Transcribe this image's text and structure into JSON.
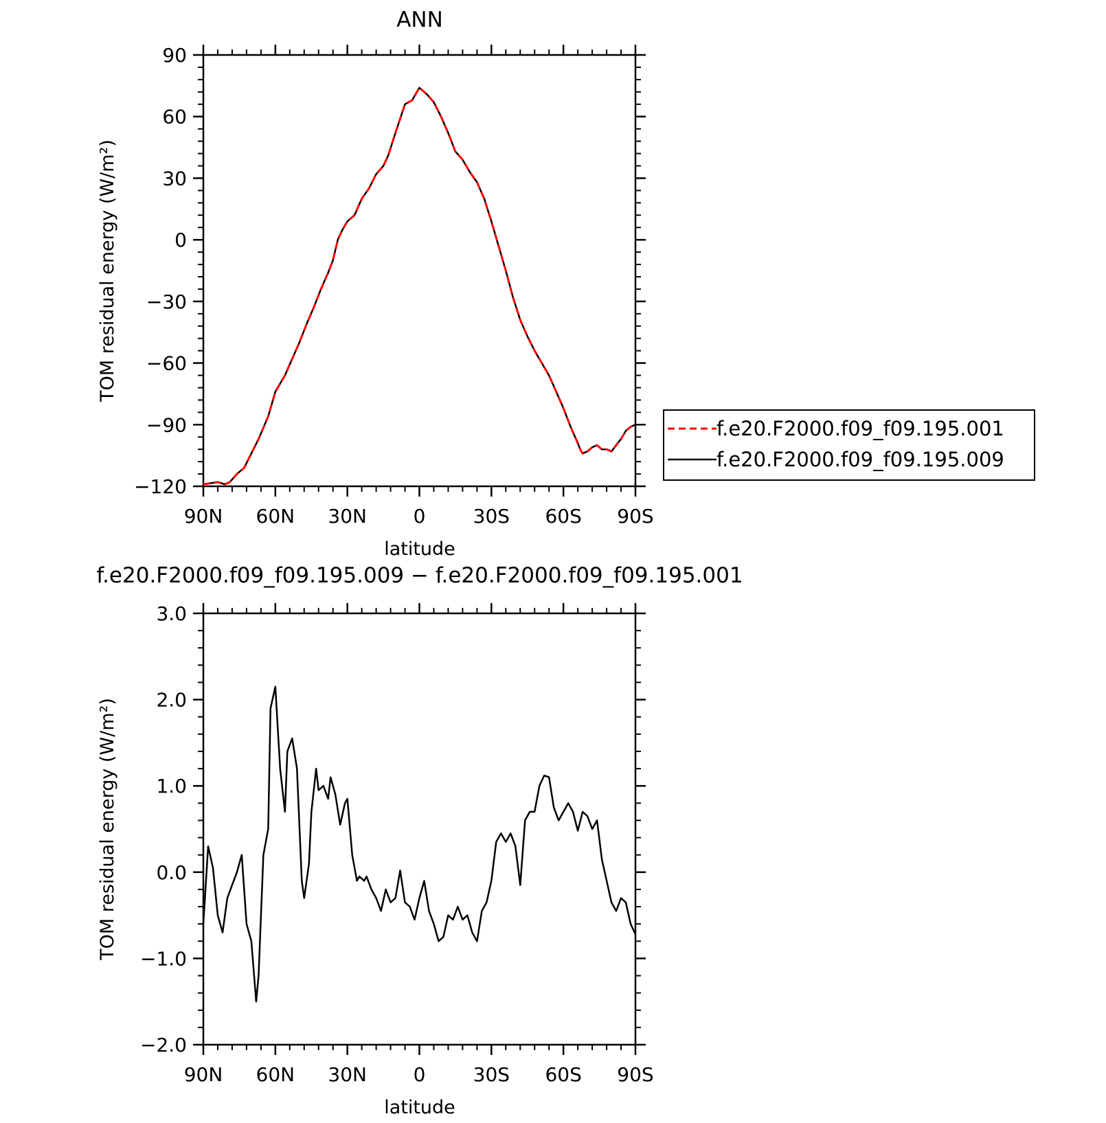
{
  "chart_data": [
    {
      "type": "line",
      "title": "ANN",
      "xlabel": "latitude",
      "ylabel": "TOM residual energy (W/m²)",
      "xlim": [
        90,
        -90
      ],
      "ylim": [
        -120,
        90
      ],
      "x_ticks": [
        90,
        60,
        30,
        0,
        -30,
        -60,
        -90
      ],
      "x_tick_labels": [
        "90N",
        "60N",
        "30N",
        "0",
        "30S",
        "60S",
        "90S"
      ],
      "y_ticks": [
        90,
        60,
        30,
        0,
        -30,
        -60,
        -90,
        -120
      ],
      "y_tick_labels": [
        "90",
        "60",
        "30",
        "0",
        "−30",
        "−60",
        "−90",
        "−120"
      ],
      "legend": {
        "placement": "right",
        "entries": [
          "f.e20.F2000.f09_f09.195.001",
          "f.e20.F2000.f09_f09.195.009"
        ]
      },
      "colors": {
        "f.e20.F2000.f09_f09.195.001": "#ff0000",
        "f.e20.F2000.f09_f09.195.009": "#000000"
      },
      "series": [
        {
          "name": "f.e20.F2000.f09_f09.195.001",
          "style": "dashed",
          "x": [
            90,
            84,
            81,
            79,
            76,
            73,
            70,
            67,
            63,
            60,
            56,
            53,
            50,
            47,
            44,
            41,
            38,
            36,
            34,
            32,
            30,
            27,
            24,
            21,
            18,
            15,
            13,
            10,
            6,
            3,
            0,
            -3,
            -6,
            -9,
            -12,
            -15,
            -18,
            -21,
            -24,
            -27,
            -30,
            -33,
            -36,
            -39,
            -42,
            -45,
            -48,
            -51,
            -54,
            -57,
            -60,
            -63,
            -66,
            -67,
            -68,
            -70,
            -72,
            -74,
            -76,
            -78,
            -80,
            -82,
            -84,
            -86,
            -88,
            -90
          ],
          "y": [
            -119,
            -118,
            -119,
            -118,
            -114,
            -111,
            -104,
            -97,
            -86,
            -74,
            -66,
            -58,
            -50,
            -41,
            -33,
            -24,
            -16,
            -10,
            0,
            5,
            9,
            12,
            20,
            25,
            32,
            36,
            41,
            52,
            66,
            68,
            74,
            71,
            67,
            60,
            52,
            43,
            39,
            33,
            28,
            20,
            9,
            -3,
            -15,
            -28,
            -39,
            -47,
            -54,
            -60,
            -66,
            -74,
            -82,
            -91,
            -99,
            -102,
            -104,
            -103,
            -101,
            -100,
            -102,
            -102,
            -103,
            -100,
            -97,
            -93,
            -91,
            -90
          ]
        },
        {
          "name": "f.e20.F2000.f09_f09.195.009",
          "style": "solid",
          "x": [
            90,
            84,
            81,
            79,
            76,
            73,
            70,
            67,
            63,
            60,
            56,
            53,
            50,
            47,
            44,
            41,
            38,
            36,
            34,
            32,
            30,
            27,
            24,
            21,
            18,
            15,
            13,
            10,
            6,
            3,
            0,
            -3,
            -6,
            -9,
            -12,
            -15,
            -18,
            -21,
            -24,
            -27,
            -30,
            -33,
            -36,
            -39,
            -42,
            -45,
            -48,
            -51,
            -54,
            -57,
            -60,
            -63,
            -66,
            -67,
            -68,
            -70,
            -72,
            -74,
            -76,
            -78,
            -80,
            -82,
            -84,
            -86,
            -88,
            -90
          ],
          "y": [
            -119,
            -118,
            -119,
            -118,
            -114,
            -111,
            -104,
            -97,
            -86,
            -74,
            -66,
            -58,
            -50,
            -41,
            -33,
            -24,
            -16,
            -10,
            0,
            5,
            9,
            12,
            20,
            25,
            32,
            36,
            41,
            52,
            66,
            68,
            74,
            71,
            67,
            60,
            52,
            43,
            39,
            33,
            28,
            20,
            9,
            -3,
            -15,
            -28,
            -39,
            -47,
            -54,
            -60,
            -66,
            -74,
            -82,
            -91,
            -99,
            -102,
            -104,
            -103,
            -101,
            -100,
            -102,
            -102,
            -103,
            -100,
            -97,
            -93,
            -91,
            -90
          ]
        }
      ]
    },
    {
      "type": "line",
      "title": "f.e20.F2000.f09_f09.195.009 − f.e20.F2000.f09_f09.195.001",
      "xlabel": "latitude",
      "ylabel": "TOM residual energy (W/m²)",
      "xlim": [
        90,
        -90
      ],
      "ylim": [
        -2.0,
        3.0
      ],
      "x_ticks": [
        90,
        60,
        30,
        0,
        -30,
        -60,
        -90
      ],
      "x_tick_labels": [
        "90N",
        "60N",
        "30N",
        "0",
        "30S",
        "60S",
        "90S"
      ],
      "y_ticks": [
        3.0,
        2.0,
        1.0,
        0.0,
        -1.0,
        -2.0
      ],
      "y_tick_labels": [
        "3.0",
        "2.0",
        "1.0",
        "0.0",
        "−1.0",
        "−2.0"
      ],
      "colors": {
        "difference": "#000000"
      },
      "series": [
        {
          "x": [
            90,
            88,
            86,
            84,
            82,
            80,
            78,
            76,
            74,
            72,
            70,
            68,
            67,
            65,
            63,
            62,
            60,
            58,
            56,
            55,
            53,
            51,
            49,
            48,
            46,
            45,
            43,
            42,
            40,
            38,
            37,
            35,
            33,
            31,
            30,
            28,
            26,
            25,
            23,
            22,
            20,
            18,
            16,
            14,
            12,
            10,
            8,
            6,
            4,
            2,
            0,
            -2,
            -4,
            -6,
            -8,
            -10,
            -12,
            -14,
            -16,
            -18,
            -20,
            -22,
            -24,
            -26,
            -28,
            -30,
            -32,
            -34,
            -36,
            -38,
            -40,
            -42,
            -44,
            -46,
            -48,
            -50,
            -52,
            -54,
            -56,
            -58,
            -60,
            -62,
            -64,
            -66,
            -68,
            -70,
            -72,
            -74,
            -76,
            -78,
            -80,
            -82,
            -84,
            -86,
            -88,
            -90
          ],
          "y": [
            -0.6,
            0.3,
            0.05,
            -0.5,
            -0.7,
            -0.3,
            -0.15,
            0.0,
            0.2,
            -0.6,
            -0.8,
            -1.5,
            -1.2,
            0.2,
            0.5,
            1.9,
            2.15,
            1.2,
            0.7,
            1.4,
            1.55,
            1.2,
            -0.1,
            -0.3,
            0.1,
            0.7,
            1.2,
            0.95,
            1.0,
            0.85,
            1.1,
            0.9,
            0.55,
            0.8,
            0.85,
            0.2,
            -0.1,
            -0.05,
            -0.1,
            -0.05,
            -0.2,
            -0.3,
            -0.45,
            -0.2,
            -0.35,
            -0.3,
            0.02,
            -0.35,
            -0.4,
            -0.55,
            -0.3,
            -0.1,
            -0.45,
            -0.6,
            -0.8,
            -0.75,
            -0.5,
            -0.55,
            -0.4,
            -0.55,
            -0.5,
            -0.7,
            -0.8,
            -0.45,
            -0.35,
            -0.1,
            0.35,
            0.45,
            0.35,
            0.45,
            0.3,
            -0.15,
            0.6,
            0.7,
            0.7,
            1.0,
            1.12,
            1.1,
            0.75,
            0.6,
            0.7,
            0.8,
            0.7,
            0.48,
            0.7,
            0.65,
            0.5,
            0.6,
            0.15,
            -0.1,
            -0.35,
            -0.45,
            -0.3,
            -0.35,
            -0.6,
            -0.72
          ]
        }
      ]
    }
  ]
}
